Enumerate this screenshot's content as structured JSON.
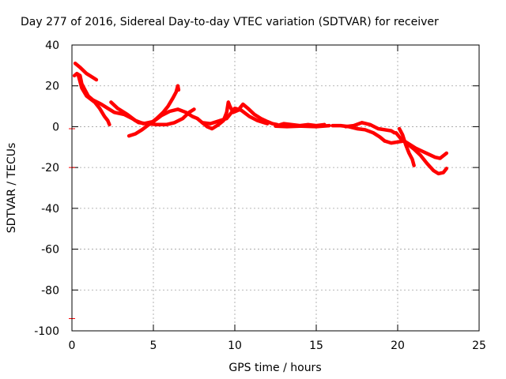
{
  "chart_data": {
    "type": "scatter",
    "title": "Day 277 of 2016, Sidereal Day-to-day VTEC variation (SDTVAR) for receiver",
    "xlabel": "GPS time / hours",
    "ylabel": "SDTVAR / TECUs",
    "xlim": [
      0,
      25
    ],
    "ylim": [
      -100,
      40
    ],
    "xticks": [
      0,
      5,
      10,
      15,
      20,
      25
    ],
    "yticks": [
      -100,
      -80,
      -60,
      -40,
      -20,
      0,
      20,
      40
    ],
    "grid": true,
    "color": "#ff0000",
    "series": [
      {
        "values": [
          [
            0.2,
            31
          ],
          [
            0.5,
            29
          ],
          [
            0.9,
            26
          ],
          [
            1.3,
            24
          ],
          [
            1.5,
            23
          ]
        ]
      },
      {
        "values": [
          [
            0.15,
            25
          ],
          [
            0.3,
            26
          ],
          [
            0.5,
            25
          ],
          [
            0.6,
            21
          ],
          [
            0.8,
            18
          ],
          [
            1.0,
            15
          ],
          [
            1.3,
            13
          ],
          [
            1.8,
            11
          ],
          [
            2.2,
            9
          ],
          [
            2.6,
            7
          ],
          [
            3.2,
            6
          ],
          [
            3.7,
            4
          ],
          [
            4.1,
            2
          ],
          [
            4.6,
            1.5
          ],
          [
            5.2,
            1
          ],
          [
            5.8,
            1
          ],
          [
            6.3,
            2
          ],
          [
            6.8,
            4
          ],
          [
            7.2,
            7
          ],
          [
            7.5,
            8.5
          ]
        ]
      },
      {
        "values": [
          [
            0.4,
            25
          ],
          [
            0.6,
            19
          ],
          [
            0.9,
            15
          ],
          [
            1.4,
            12
          ],
          [
            1.7,
            9
          ],
          [
            2.0,
            5
          ],
          [
            2.2,
            3
          ],
          [
            2.3,
            1
          ]
        ]
      },
      {
        "values": [
          [
            2.4,
            12
          ],
          [
            2.8,
            9
          ],
          [
            3.4,
            6
          ],
          [
            3.9,
            3
          ],
          [
            4.4,
            1.5
          ],
          [
            5.0,
            2.5
          ],
          [
            5.5,
            5.5
          ],
          [
            6.0,
            7.5
          ],
          [
            6.5,
            8.5
          ],
          [
            7.0,
            7
          ],
          [
            7.4,
            5
          ],
          [
            7.7,
            4
          ]
        ]
      },
      {
        "values": [
          [
            3.5,
            -4.5
          ],
          [
            3.9,
            -3.5
          ],
          [
            4.3,
            -1.5
          ],
          [
            4.8,
            1.5
          ],
          [
            5.2,
            4
          ],
          [
            5.6,
            7
          ],
          [
            5.9,
            10
          ],
          [
            6.2,
            14
          ],
          [
            6.4,
            17
          ],
          [
            6.5,
            20
          ],
          [
            6.55,
            18
          ]
        ]
      },
      {
        "values": [
          [
            7.7,
            4
          ],
          [
            8.0,
            2
          ],
          [
            8.3,
            0
          ],
          [
            8.6,
            -1
          ],
          [
            9.0,
            1
          ],
          [
            9.3,
            3
          ],
          [
            9.5,
            7
          ],
          [
            9.6,
            12
          ],
          [
            9.7,
            10
          ],
          [
            9.9,
            7
          ],
          [
            10.2,
            8
          ],
          [
            10.5,
            11
          ],
          [
            10.8,
            9
          ],
          [
            11.2,
            6
          ],
          [
            11.6,
            4
          ],
          [
            12.0,
            2.5
          ],
          [
            12.3,
            1.5
          ],
          [
            12.6,
            1
          ]
        ]
      },
      {
        "values": [
          [
            8.0,
            2
          ],
          [
            8.5,
            1.5
          ],
          [
            9.1,
            3
          ],
          [
            9.5,
            4
          ],
          [
            10.0,
            9
          ],
          [
            10.4,
            8
          ],
          [
            10.9,
            5
          ],
          [
            11.4,
            3
          ],
          [
            12.0,
            1.5
          ]
        ]
      },
      {
        "values": [
          [
            12.6,
            0.5
          ],
          [
            13.0,
            1.5
          ],
          [
            13.5,
            1
          ],
          [
            14.0,
            0.5
          ],
          [
            14.5,
            1
          ],
          [
            15.0,
            0.5
          ],
          [
            15.5,
            1
          ]
        ]
      },
      {
        "values": [
          [
            12.5,
            0.3
          ],
          [
            13.2,
            0
          ],
          [
            14.0,
            0.3
          ],
          [
            15.0,
            0
          ],
          [
            15.8,
            0.5
          ]
        ]
      },
      {
        "values": [
          [
            16.0,
            0.5
          ],
          [
            16.5,
            0.5
          ],
          [
            17.0,
            0
          ],
          [
            17.5,
            -1
          ],
          [
            18.0,
            -1.5
          ],
          [
            18.5,
            -3
          ],
          [
            18.9,
            -5
          ],
          [
            19.2,
            -7
          ]
        ]
      },
      {
        "values": [
          [
            16.8,
            0
          ],
          [
            17.3,
            0.5
          ],
          [
            17.8,
            2
          ],
          [
            18.3,
            1
          ],
          [
            18.8,
            -1
          ],
          [
            19.2,
            -1.5
          ],
          [
            19.6,
            -2
          ],
          [
            19.8,
            -3
          ]
        ]
      },
      {
        "values": [
          [
            19.2,
            -7
          ],
          [
            19.6,
            -8
          ],
          [
            20.0,
            -7.5
          ],
          [
            20.4,
            -7
          ],
          [
            20.7,
            -8.5
          ],
          [
            21.1,
            -10.5
          ],
          [
            21.5,
            -12
          ],
          [
            21.9,
            -13.5
          ],
          [
            22.3,
            -15
          ],
          [
            22.6,
            -15.5
          ],
          [
            23.0,
            -13
          ]
        ]
      },
      {
        "values": [
          [
            20.1,
            -1
          ],
          [
            20.3,
            -4
          ],
          [
            20.5,
            -9
          ],
          [
            20.7,
            -13
          ],
          [
            20.9,
            -16
          ],
          [
            21.0,
            -19
          ]
        ]
      },
      {
        "values": [
          [
            19.9,
            -3
          ],
          [
            20.2,
            -6
          ],
          [
            20.6,
            -8.5
          ],
          [
            21.0,
            -11
          ],
          [
            21.4,
            -14
          ],
          [
            21.8,
            -18
          ],
          [
            22.2,
            -21.5
          ],
          [
            22.5,
            -23
          ],
          [
            22.8,
            -22.5
          ],
          [
            23.0,
            -20.5
          ]
        ]
      }
    ],
    "stray_points": [
      [
        0,
        -1
      ],
      [
        0,
        -20
      ],
      [
        0,
        -94
      ]
    ]
  }
}
